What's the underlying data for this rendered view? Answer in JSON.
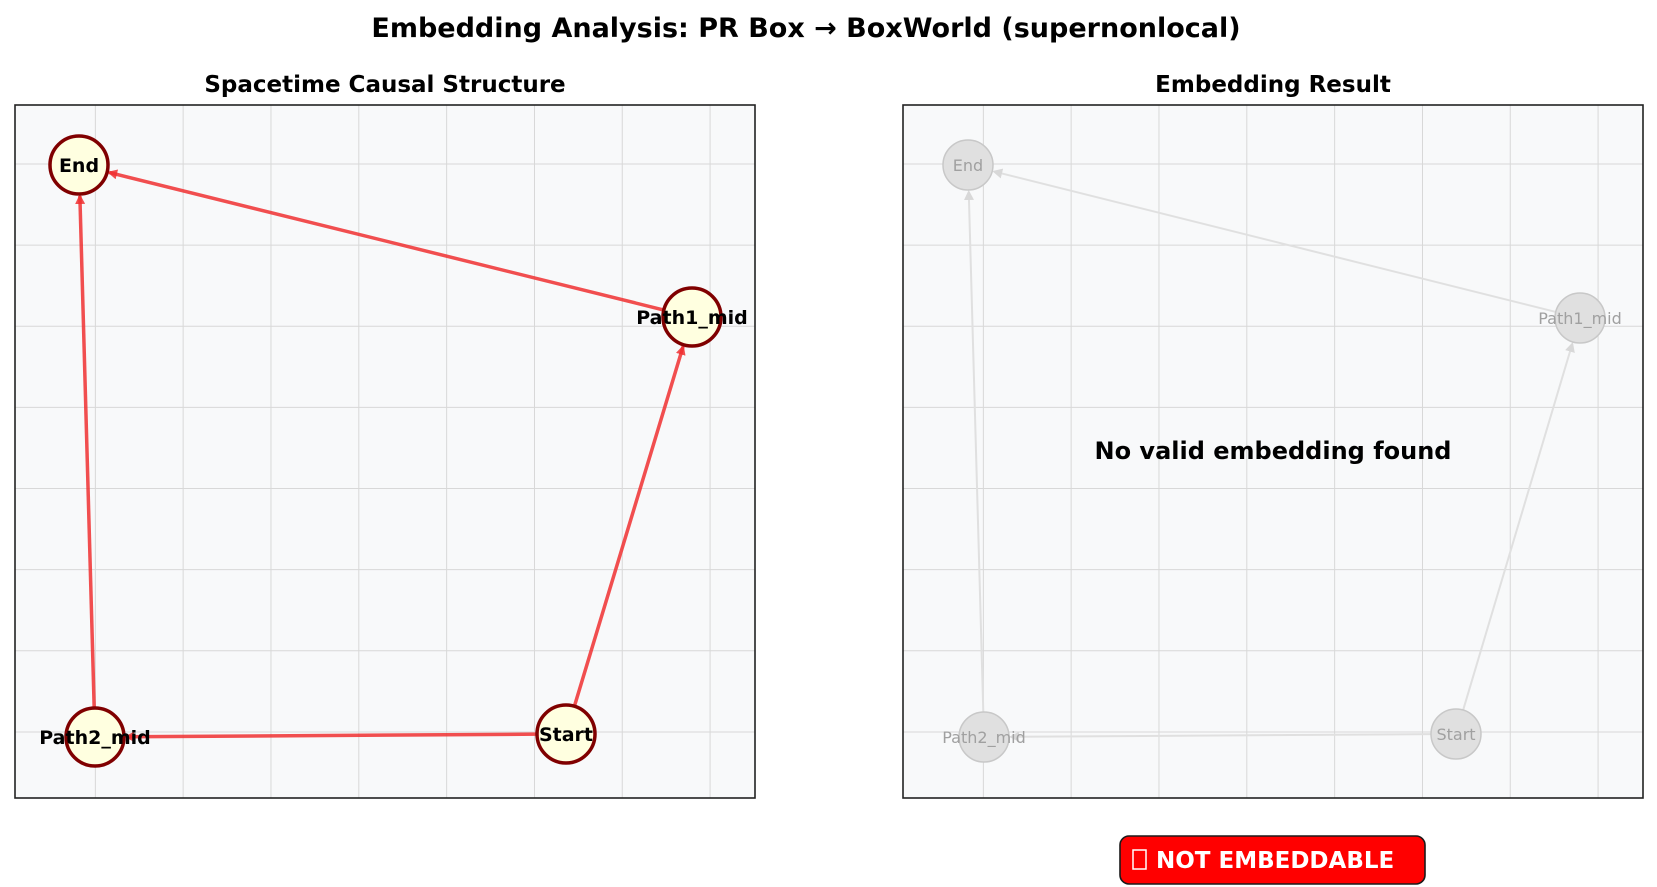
{
  "figure": {
    "title": "Embedding Analysis: PR Box → BoxWorld (supernonlocal)"
  },
  "left_panel": {
    "title": "Spacetime Causal Structure",
    "node_fill": "#ffffe0",
    "node_stroke": "#800000",
    "edge_color": "#f03030"
  },
  "right_panel": {
    "title": "Embedding Result",
    "message": "No valid embedding found",
    "node_fill": "#e0e0e0",
    "node_stroke": "#c8c8c8",
    "edge_color": "#e0e0e0"
  },
  "graph": {
    "nodes": [
      {
        "id": "End",
        "label": "End"
      },
      {
        "id": "Path1_mid",
        "label": "Path1_mid"
      },
      {
        "id": "Path2_mid",
        "label": "Path2_mid"
      },
      {
        "id": "Start",
        "label": "Start"
      }
    ],
    "edges": [
      {
        "from": "Start",
        "to": "Path1_mid"
      },
      {
        "from": "Start",
        "to": "Path2_mid"
      },
      {
        "from": "Path1_mid",
        "to": "End"
      },
      {
        "from": "Path2_mid",
        "to": "End"
      }
    ]
  },
  "status_badge": {
    "icon": "warning-icon",
    "label": "NOT EMBEDDABLE",
    "color": "#ff0000"
  }
}
